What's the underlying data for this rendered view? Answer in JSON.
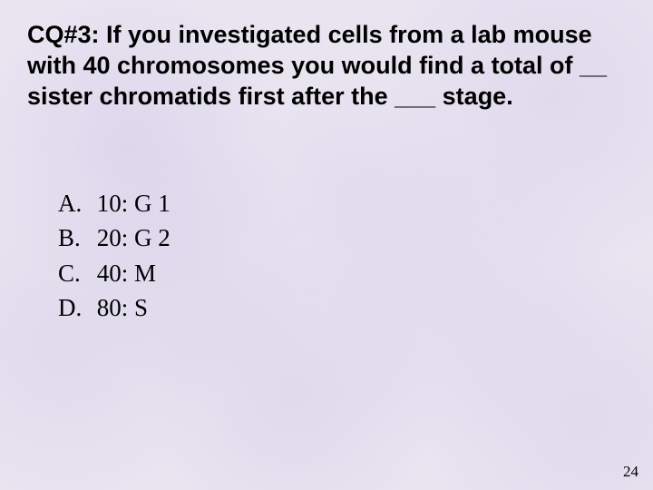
{
  "question": "CQ#3: If you investigated cells from a lab mouse with 40 chromosomes you would find a total of  __ sister chromatids first after the ___ stage.",
  "options": [
    {
      "letter": "A.",
      "text": "10: G 1"
    },
    {
      "letter": "B.",
      "text": "20: G 2"
    },
    {
      "letter": "C.",
      "text": "40: M"
    },
    {
      "letter": "D.",
      "text": "80: S"
    }
  ],
  "page_number": "24",
  "colors": {
    "background_base": "#e8e4f0",
    "text": "#000000"
  },
  "typography": {
    "question_font": "Verdana",
    "question_size_pt": 20,
    "question_weight": "bold",
    "option_font": "Times New Roman",
    "option_size_pt": 20,
    "page_num_size_pt": 13
  }
}
